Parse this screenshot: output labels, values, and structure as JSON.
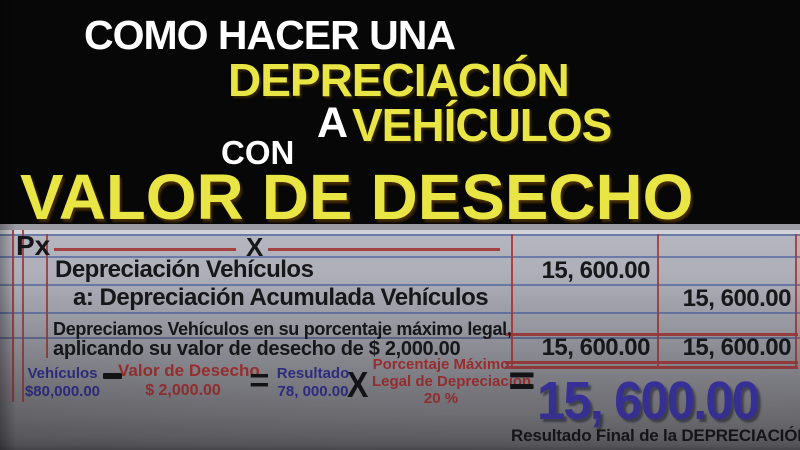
{
  "title": {
    "line1": "COMO HACER UNA",
    "line2": "DEPRECIACIÓN",
    "line3_prefix": "A",
    "line3": "VEHÍCULOS",
    "line4": "CON",
    "line5": "VALOR DE DESECHO"
  },
  "ledger": {
    "header": {
      "left": "Px",
      "mid": "X"
    },
    "rows": [
      {
        "description": "Depreciación Vehículos",
        "debit": "15, 600.00",
        "credit": ""
      },
      {
        "description": "a: Depreciación Acumulada Vehículos",
        "debit": "",
        "credit": "15, 600.00"
      }
    ],
    "note_line1": "Depreciamos Vehículos en su porcentaje máximo legal,",
    "note_line2": "aplicando su valor de desecho de $ 2,000.00",
    "totals": {
      "debit": "15, 600.00",
      "credit": "15, 600.00"
    }
  },
  "formula": {
    "operand1": {
      "label": "Vehículos",
      "value": "$80,000.00"
    },
    "operator1": "−",
    "operand2": {
      "label": "Valor de Desecho",
      "value": "$ 2,000.00"
    },
    "operator2": "=",
    "result1": {
      "label": "Resultado",
      "value": "78, 000.00"
    },
    "operator3": "X",
    "operand3": {
      "label_line1": "Porcentaje Máximo",
      "label_line2": "Legal de Depreciación",
      "value": "20 %"
    },
    "operator4": "=",
    "final_value": "15, 600.00",
    "final_caption": "Resultado Final de la DEPRECIACIÓN"
  },
  "colors": {
    "background": "#070707",
    "title_white": "#ffffff",
    "title_yellow": "#e9e545",
    "line_blue": "#4b64a0",
    "line_red": "#a43a3a",
    "text_black": "#17171a",
    "text_blue": "#312e8f",
    "text_red": "#a93030",
    "final_blue": "#3c34ad"
  }
}
